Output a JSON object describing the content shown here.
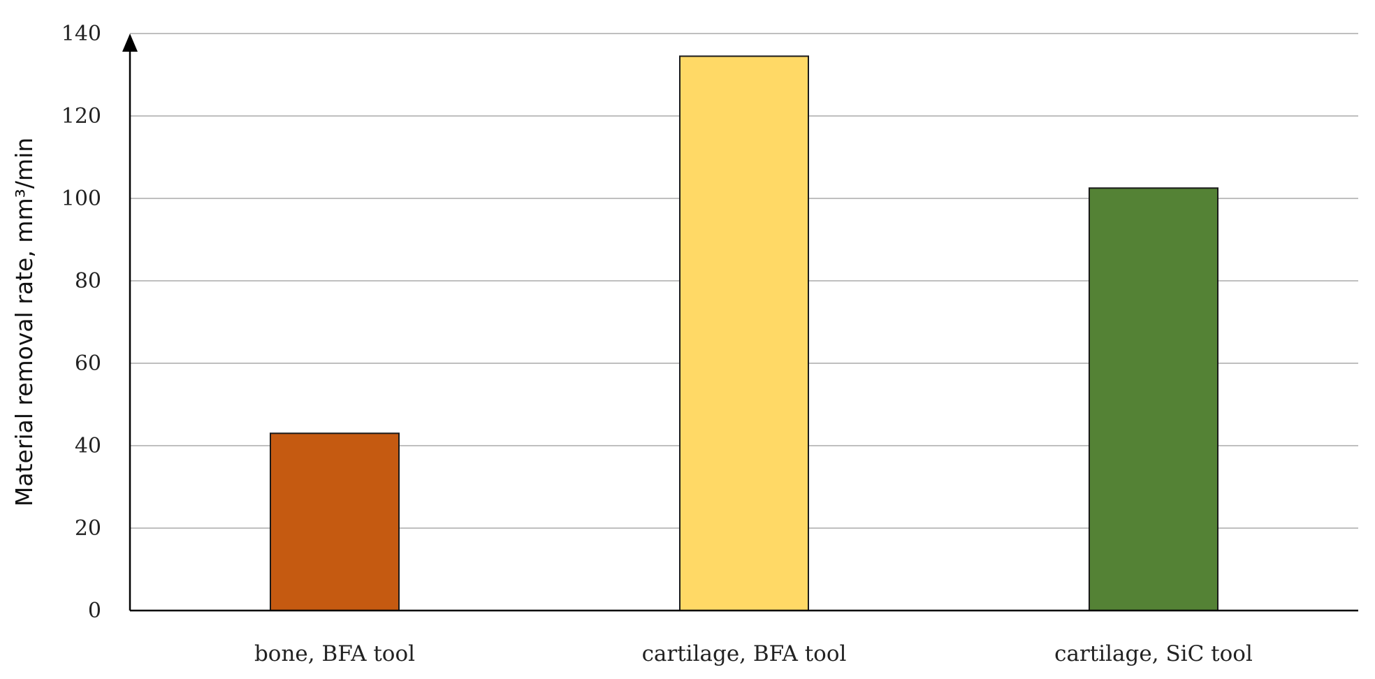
{
  "chart_data": {
    "type": "bar",
    "title": "",
    "xlabel": "",
    "ylabel": "Material removal rate, mm³/min",
    "categories": [
      "bone, BFA tool",
      "cartilage, BFA tool",
      "cartilage, SiC tool"
    ],
    "values": [
      43,
      134.5,
      102.5
    ],
    "colors": [
      "#C55A11",
      "#FFD966",
      "#548235"
    ],
    "ylim": [
      0,
      140
    ],
    "yticks": [
      0,
      20,
      40,
      60,
      80,
      100,
      120,
      140
    ],
    "grid": true,
    "legend": "none"
  }
}
